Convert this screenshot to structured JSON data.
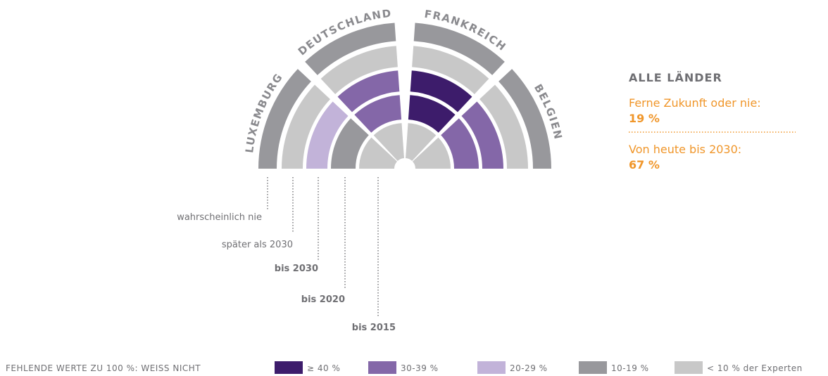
{
  "sectors": [
    {
      "label": "LUXEMBURG",
      "rings": [
        "#c8c8c8",
        "#98989c",
        "#c2b3d9",
        "#c8c8c8",
        "#98989c"
      ]
    },
    {
      "label": "DEUTSCHLAND",
      "rings": [
        "#c8c8c8",
        "#8467a8",
        "#8467a8",
        "#c8c8c8",
        "#98989c"
      ]
    },
    {
      "label": "FRANKREICH",
      "rings": [
        "#c8c8c8",
        "#3d1c6b",
        "#3d1c6b",
        "#c8c8c8",
        "#98989c"
      ]
    },
    {
      "label": "BELGIEN",
      "rings": [
        "#c8c8c8",
        "#8467a8",
        "#8467a8",
        "#c8c8c8",
        "#98989c"
      ]
    }
  ],
  "ring_labels": [
    "bis 2015",
    "bis 2020",
    "bis 2030",
    "später als 2030",
    "wahrscheinlich nie"
  ],
  "panel": {
    "title": "ALLE LÄNDER",
    "items": [
      {
        "text": "Ferne Zukunft oder nie:",
        "value": "19 %"
      },
      {
        "text": "Von heute bis 2030:",
        "value": "67 %"
      }
    ]
  },
  "legend": {
    "title": "FEHLENDE WERTE ZU 100 %: WEISS NICHT",
    "items": [
      {
        "label": "≥ 40 %",
        "color": "#3d1c6b"
      },
      {
        "label": "30-39 %",
        "color": "#8467a8"
      },
      {
        "label": "20-29 %",
        "color": "#c2b3d9"
      },
      {
        "label": "10-19 %",
        "color": "#98989c"
      },
      {
        "label": "< 10 % der Experten",
        "color": "#c8c8c8"
      }
    ]
  }
}
